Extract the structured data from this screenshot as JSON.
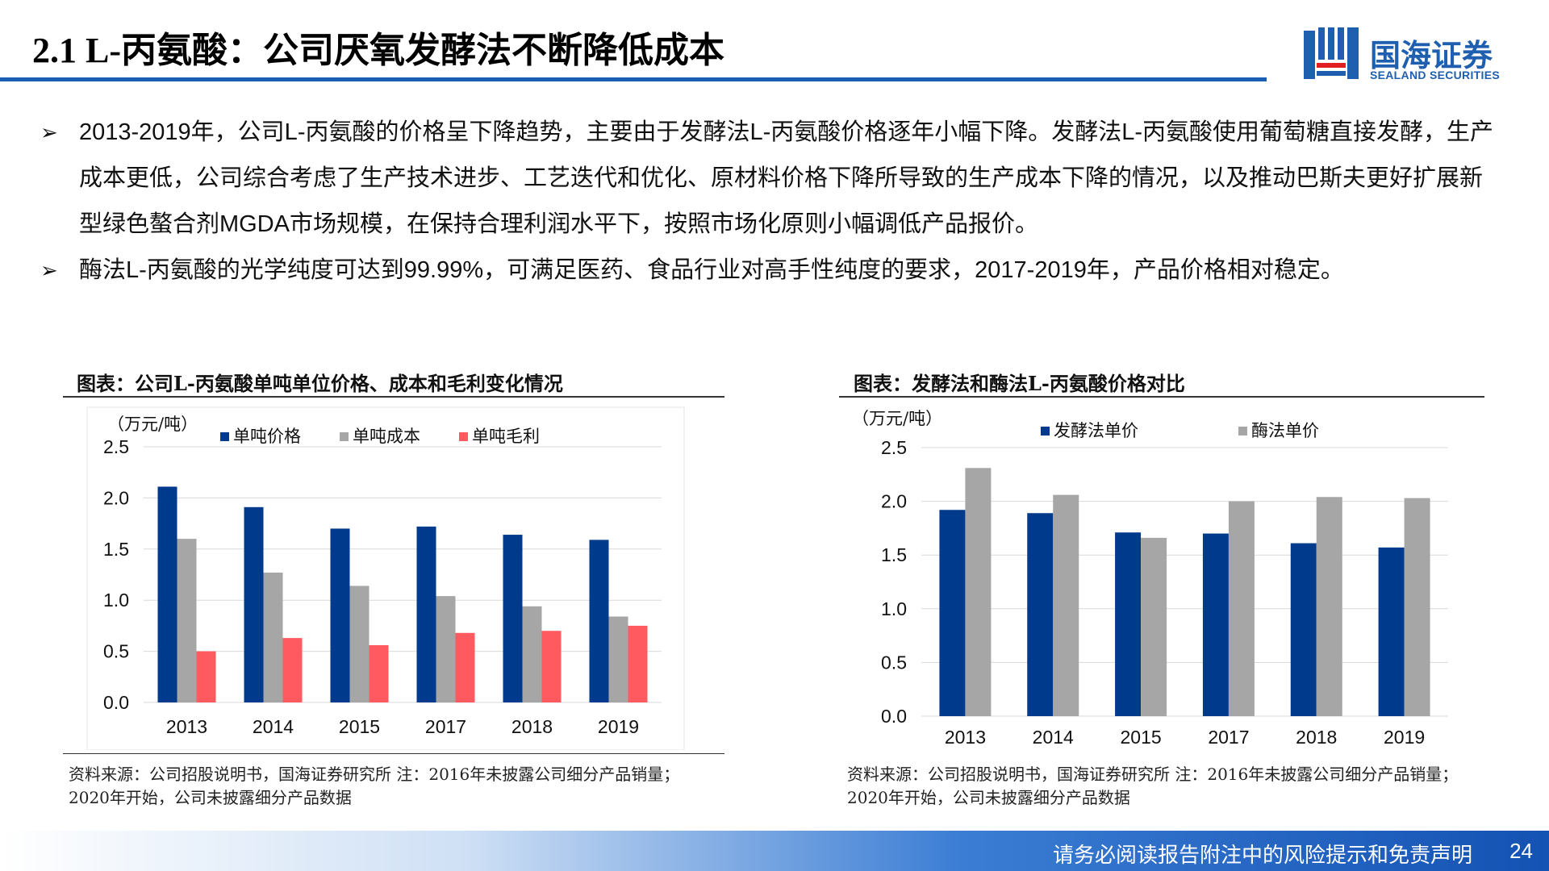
{
  "header": {
    "title": "2.1 L-丙氨酸：公司厌氧发酵法不断降低成本",
    "logo_cn": "国海证券",
    "logo_en": "SEALAND SECURITIES"
  },
  "bullets": [
    "2013-2019年，公司L-丙氨酸的价格呈下降趋势，主要由于发酵法L-丙氨酸价格逐年小幅下降。发酵法L-丙氨酸使用葡萄糖直接发酵，生产成本更低，公司综合考虑了生产技术进步、工艺迭代和优化、原材料价格下降所导致的生产成本下降的情况，以及推动巴斯夫更好扩展新型绿色螯合剂MGDA市场规模，在保持合理利润水平下，按照市场化原则小幅调低产品报价。",
    "酶法L-丙氨酸的光学纯度可达到99.99%，可满足医药、食品行业对高手性纯度的要求，2017-2019年，产品价格相对稳定。"
  ],
  "colors": {
    "blue": "#003a8c",
    "gray": "#a6a6a6",
    "red": "#ff5a5f",
    "grid": "#d9d9d9"
  },
  "chart_data": [
    {
      "type": "bar",
      "title": "图表：公司L-丙氨酸单吨单位价格、成本和毛利变化情况",
      "unit_label": "（万元/吨）",
      "categories": [
        "2013",
        "2014",
        "2015",
        "2017",
        "2018",
        "2019"
      ],
      "series": [
        {
          "name": "单吨价格",
          "color": "#003a8c",
          "values": [
            2.11,
            1.91,
            1.7,
            1.72,
            1.64,
            1.59
          ]
        },
        {
          "name": "单吨成本",
          "color": "#a6a6a6",
          "values": [
            1.6,
            1.27,
            1.14,
            1.04,
            0.94,
            0.84
          ]
        },
        {
          "name": "单吨毛利",
          "color": "#ff5a5f",
          "values": [
            0.5,
            0.63,
            0.56,
            0.68,
            0.7,
            0.75
          ]
        }
      ],
      "ylim": [
        0,
        2.5
      ],
      "yticks": [
        "0.0",
        "0.5",
        "1.0",
        "1.5",
        "2.0",
        "2.5"
      ],
      "source": "资料来源：公司招股说明书，国海证券研究所 注：2016年未披露公司细分产品销量；2020年开始，公司未披露细分产品数据"
    },
    {
      "type": "bar",
      "title": "图表：发酵法和酶法L-丙氨酸价格对比",
      "unit_label": "（万元/吨）",
      "categories": [
        "2013",
        "2014",
        "2015",
        "2017",
        "2018",
        "2019"
      ],
      "series": [
        {
          "name": "发酵法单价",
          "color": "#003a8c",
          "values": [
            1.92,
            1.89,
            1.71,
            1.7,
            1.61,
            1.57
          ]
        },
        {
          "name": "酶法单价",
          "color": "#a6a6a6",
          "values": [
            2.31,
            2.06,
            1.66,
            2.0,
            2.04,
            2.03
          ]
        }
      ],
      "ylim": [
        0,
        2.5
      ],
      "yticks": [
        "0.0",
        "0.5",
        "1.0",
        "1.5",
        "2.0",
        "2.5"
      ],
      "source": "资料来源：公司招股说明书，国海证券研究所 注：2016年未披露公司细分产品销量；2020年开始，公司未披露细分产品数据"
    }
  ],
  "footer": {
    "disclaimer": "请务必阅读报告附注中的风险提示和免责声明",
    "page": "24"
  }
}
